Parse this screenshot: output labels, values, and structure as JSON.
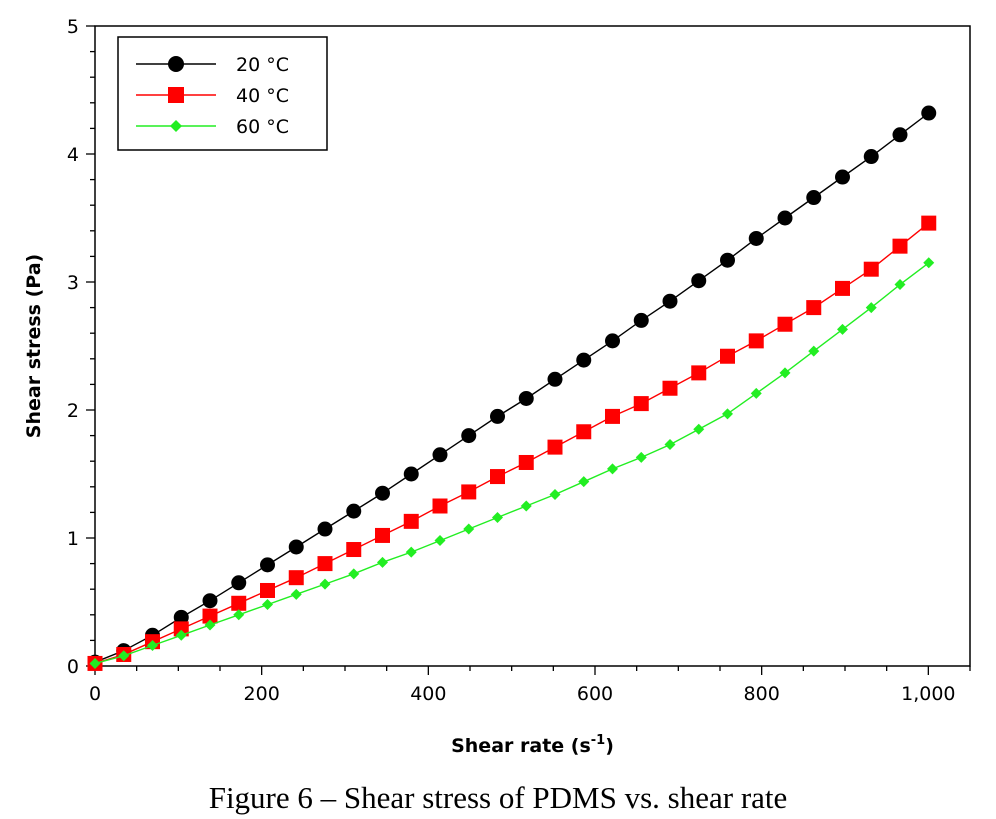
{
  "chart_data": {
    "type": "line",
    "xlabel": "Shear rate (s",
    "xlabel_sup": "-1",
    "xlabel_end": ")",
    "ylabel": "Shear stress (Pa)",
    "xlim": [
      0,
      1050
    ],
    "ylim": [
      0,
      5
    ],
    "x_ticks": [
      0,
      200,
      400,
      600,
      800,
      1000
    ],
    "x_tick_labels": [
      "0",
      "200",
      "400",
      "600",
      "800",
      "1,000"
    ],
    "y_ticks": [
      0,
      1,
      2,
      3,
      4,
      5
    ],
    "y_tick_labels": [
      "0",
      "1",
      "2",
      "3",
      "4",
      "5"
    ],
    "grid": false,
    "legend_position": "top-left",
    "x": [
      0,
      34.5,
      69,
      103.5,
      138,
      172.5,
      207,
      241.5,
      276,
      310.5,
      345,
      379.5,
      414,
      448.5,
      483,
      517.5,
      552,
      586.5,
      621,
      655.5,
      690,
      724.5,
      759,
      793.5,
      828,
      862.5,
      897,
      931.5,
      966,
      1000.5
    ],
    "series": [
      {
        "name": "20 °C",
        "color": "#000000",
        "marker": "circle",
        "values": [
          0.03,
          0.12,
          0.24,
          0.38,
          0.51,
          0.65,
          0.79,
          0.93,
          1.07,
          1.21,
          1.35,
          1.5,
          1.65,
          1.8,
          1.95,
          2.09,
          2.24,
          2.39,
          2.54,
          2.7,
          2.85,
          3.01,
          3.17,
          3.34,
          3.5,
          3.66,
          3.82,
          3.98,
          4.15,
          4.32
        ]
      },
      {
        "name": "40 °C",
        "color": "#ff0000",
        "marker": "square",
        "values": [
          0.02,
          0.09,
          0.19,
          0.29,
          0.39,
          0.49,
          0.59,
          0.69,
          0.8,
          0.91,
          1.02,
          1.13,
          1.25,
          1.36,
          1.48,
          1.59,
          1.71,
          1.83,
          1.95,
          2.05,
          2.17,
          2.29,
          2.42,
          2.54,
          2.67,
          2.8,
          2.95,
          3.1,
          3.28,
          3.46
        ]
      },
      {
        "name": "60 °C",
        "color": "#22ee22",
        "marker": "diamond",
        "values": [
          0.02,
          0.08,
          0.16,
          0.24,
          0.32,
          0.4,
          0.48,
          0.56,
          0.64,
          0.72,
          0.81,
          0.89,
          0.98,
          1.07,
          1.16,
          1.25,
          1.34,
          1.44,
          1.54,
          1.63,
          1.73,
          1.85,
          1.97,
          2.13,
          2.29,
          2.46,
          2.63,
          2.8,
          2.98,
          3.15
        ]
      }
    ]
  },
  "caption": "Figure 6 – Shear stress of PDMS vs. shear rate"
}
